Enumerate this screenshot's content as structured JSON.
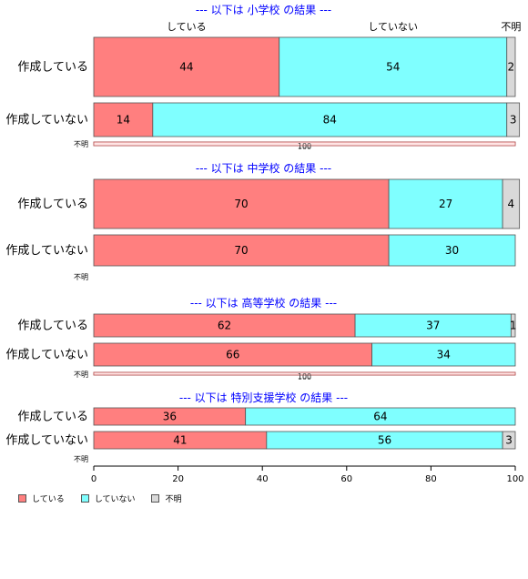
{
  "colors": {
    "yes": "#ff7f7f",
    "no": "#7fffff",
    "unknown": "#d9d9d9",
    "title": "#0000ff"
  },
  "chart_data": {
    "type": "bar",
    "orientation": "horizontal",
    "stacked": true,
    "column_headers": [
      "している",
      "していない",
      "不明"
    ],
    "xlim": [
      0,
      100
    ],
    "x_ticks": [
      0,
      20,
      40,
      60,
      80,
      100
    ],
    "legend": {
      "placement": "bottom-left",
      "items": [
        "している",
        "していない",
        "不明"
      ]
    },
    "panels": [
      {
        "title": "--- 以下は 小学校 の結果 ---",
        "rows": [
          {
            "label": "作成している",
            "values": [
              44,
              54,
              2
            ],
            "labels": [
              "44",
              "54",
              "2"
            ]
          },
          {
            "label": "作成していない",
            "values": [
              14,
              84,
              3
            ],
            "labels": [
              "14",
              "84",
              "3"
            ]
          },
          {
            "label": "不明",
            "values": [
              0,
              0,
              100
            ],
            "labels": [
              "",
              "",
              "100"
            ]
          }
        ]
      },
      {
        "title": "--- 以下は 中学校 の結果 ---",
        "rows": [
          {
            "label": "作成している",
            "values": [
              70,
              27,
              4
            ],
            "labels": [
              "70",
              "27",
              "4"
            ]
          },
          {
            "label": "作成していない",
            "values": [
              70,
              30,
              0
            ],
            "labels": [
              "70",
              "30",
              ""
            ]
          },
          {
            "label": "不明",
            "values": [],
            "labels": []
          }
        ]
      },
      {
        "title": "--- 以下は 高等学校 の結果 ---",
        "rows": [
          {
            "label": "作成している",
            "values": [
              62,
              37,
              1
            ],
            "labels": [
              "62",
              "37",
              "1"
            ]
          },
          {
            "label": "作成していない",
            "values": [
              66,
              34,
              0
            ],
            "labels": [
              "66",
              "34",
              ""
            ]
          },
          {
            "label": "不明",
            "values": [
              0,
              0,
              100
            ],
            "labels": [
              "",
              "",
              "100"
            ]
          }
        ]
      },
      {
        "title": "--- 以下は 特別支援学校 の結果 ---",
        "rows": [
          {
            "label": "作成している",
            "values": [
              36,
              64,
              0
            ],
            "labels": [
              "36",
              "64",
              ""
            ]
          },
          {
            "label": "作成していない",
            "values": [
              41,
              56,
              3
            ],
            "labels": [
              "41",
              "56",
              "3"
            ]
          },
          {
            "label": "不明",
            "values": [],
            "labels": []
          }
        ]
      }
    ]
  }
}
